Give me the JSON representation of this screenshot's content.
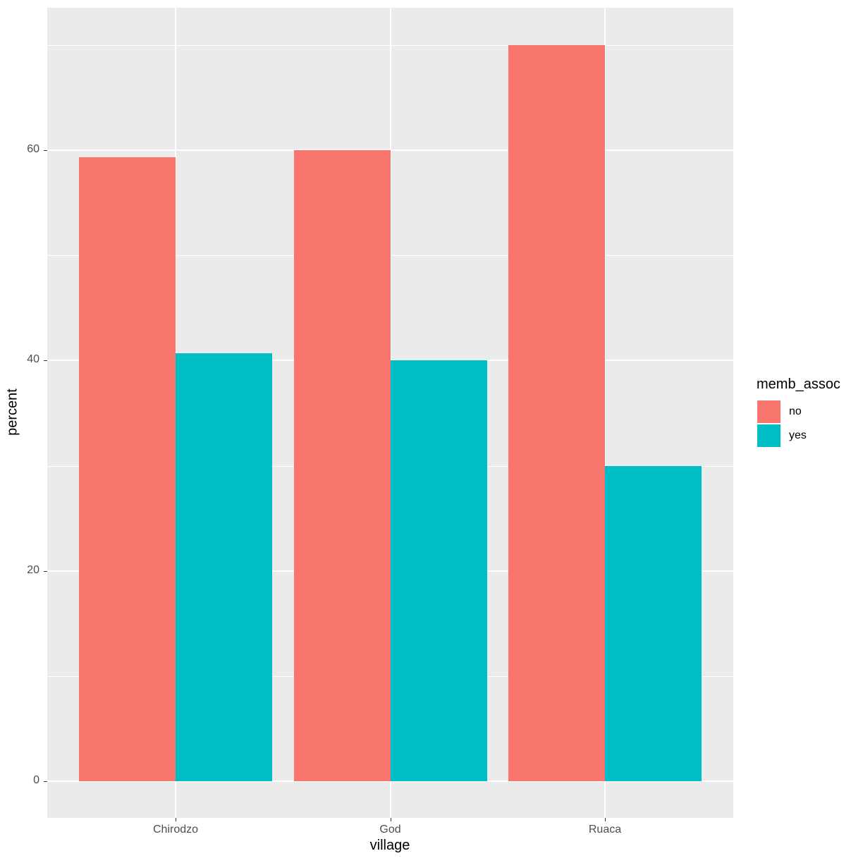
{
  "chart_data": {
    "type": "bar",
    "title": "",
    "xlabel": "village",
    "ylabel": "percent",
    "categories": [
      "Chirodzo",
      "God",
      "Ruaca"
    ],
    "series": [
      {
        "name": "no",
        "color": "#F8766D",
        "values": [
          59.3,
          60.0,
          70.0
        ]
      },
      {
        "name": "yes",
        "color": "#00BFC4",
        "values": [
          40.7,
          40.0,
          30.0
        ]
      }
    ],
    "yticks": [
      0,
      20,
      40,
      60
    ],
    "ytick_labels": [
      "0",
      "20",
      "40",
      "60"
    ],
    "ylim": [
      -3.5,
      73.5
    ],
    "grid": true,
    "legend": {
      "title": "memb_assoc",
      "position": "right",
      "entries": [
        "no",
        "yes"
      ]
    },
    "position": "dodge"
  }
}
